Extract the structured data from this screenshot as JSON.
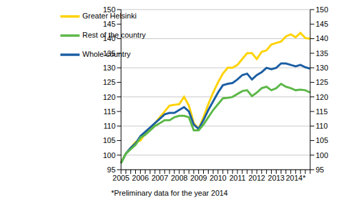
{
  "chart_data": {
    "type": "line",
    "annotation": "*Preliminary data for the year 2014",
    "categories": [
      "2005",
      null,
      null,
      null,
      "2006",
      null,
      null,
      null,
      "2007",
      null,
      null,
      null,
      "2008",
      null,
      null,
      null,
      "2009",
      null,
      null,
      null,
      "2010",
      null,
      null,
      null,
      "2011",
      null,
      null,
      null,
      "2012",
      null,
      null,
      null,
      "2013",
      null,
      null,
      null,
      "2014*",
      null,
      null,
      null
    ],
    "series": [
      {
        "name": "Greater Helsinki",
        "color": "#ffd200",
        "values": [
          97.5,
          100.5,
          102.5,
          104.5,
          105,
          107.5,
          109,
          111,
          113,
          115,
          117,
          117.3,
          117.5,
          120,
          117,
          111,
          109,
          113,
          117.5,
          121.5,
          125,
          128,
          130,
          130,
          131,
          133,
          135,
          135,
          133,
          135.5,
          136,
          138,
          138.5,
          139,
          140.8,
          141.5,
          140.5,
          142,
          140.2,
          140
        ]
      },
      {
        "name": "Whole country",
        "color": "#1b5ea3",
        "values": [
          97.3,
          100.5,
          102.5,
          104,
          106.5,
          108,
          109.5,
          111,
          112.5,
          114,
          114.5,
          114.5,
          115.5,
          116.5,
          115,
          110.5,
          109,
          112,
          115.5,
          118.5,
          121.5,
          124,
          124.5,
          124.8,
          126,
          127.5,
          128,
          126,
          127.5,
          128.5,
          130,
          129.5,
          130,
          131.5,
          131.5,
          131,
          130.5,
          131,
          130.2,
          129.7
        ]
      },
      {
        "name": "Rest of the country",
        "color": "#5cb848",
        "values": [
          97.2,
          100.5,
          102,
          103.5,
          106,
          107,
          108.5,
          110,
          111,
          112,
          112,
          113,
          113.5,
          113.5,
          113,
          108.5,
          108.5,
          110.5,
          113,
          115.5,
          117.5,
          119.5,
          119.7,
          120,
          121,
          122,
          122.3,
          120.3,
          121.5,
          123,
          123.5,
          122.3,
          123,
          124.5,
          123.5,
          123,
          122.3,
          122.5,
          122.3,
          121.5
        ]
      }
    ],
    "ylim": [
      95,
      150
    ],
    "yticks": [
      95,
      100,
      105,
      110,
      115,
      120,
      125,
      130,
      135,
      140,
      145,
      150
    ],
    "y2lim": [
      95,
      150
    ],
    "y2ticks": [
      95,
      100,
      105,
      110,
      115,
      120,
      125,
      130,
      135,
      140,
      145,
      150
    ],
    "grid": true,
    "legend": "upper left"
  }
}
